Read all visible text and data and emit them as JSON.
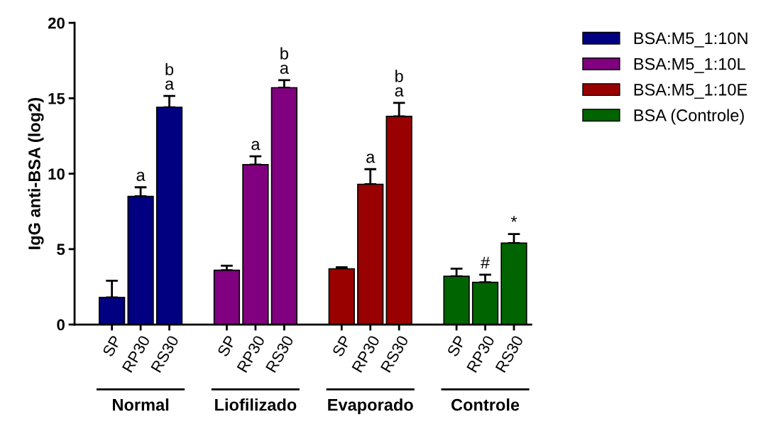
{
  "chart_data": {
    "type": "bar",
    "ylabel": "IgG anti-BSA (log2)",
    "categories": [
      "SP",
      "RP30",
      "RS30",
      null,
      "SP",
      "RP30",
      "RS30",
      null,
      "SP",
      "RP30",
      "RS30",
      null,
      "SP",
      "RP30",
      "RS30"
    ],
    "series": [
      {
        "name": "BSA:M5_1:10N",
        "color": "#000080",
        "values": [
          1.8,
          8.5,
          14.4,
          null,
          null,
          null,
          null,
          null,
          null,
          null,
          null,
          null,
          null,
          null,
          null
        ],
        "errors": [
          1.1,
          0.6,
          0.75,
          null,
          null,
          null,
          null,
          null,
          null,
          null,
          null,
          null,
          null,
          null,
          null
        ],
        "value_labels": [
          null,
          "a",
          "b\na",
          null,
          null,
          null,
          null,
          null,
          null,
          null,
          null,
          null,
          null,
          null,
          null
        ]
      },
      {
        "name": "BSA:M5_1:10L",
        "color": "#800080",
        "values": [
          null,
          null,
          null,
          null,
          3.6,
          10.6,
          15.7,
          null,
          null,
          null,
          null,
          null,
          null,
          null,
          null
        ],
        "errors": [
          null,
          null,
          null,
          null,
          0.3,
          0.55,
          0.5,
          null,
          null,
          null,
          null,
          null,
          null,
          null,
          null
        ],
        "value_labels": [
          null,
          null,
          null,
          null,
          null,
          "a",
          "b\na",
          null,
          null,
          null,
          null,
          null,
          null,
          null,
          null
        ]
      },
      {
        "name": "BSA:M5_1:10E",
        "color": "#990000",
        "values": [
          null,
          null,
          null,
          null,
          null,
          null,
          null,
          null,
          3.7,
          9.3,
          13.8,
          null,
          null,
          null,
          null
        ],
        "errors": [
          null,
          null,
          null,
          null,
          null,
          null,
          null,
          null,
          0.1,
          1.0,
          0.9,
          null,
          null,
          null,
          null
        ],
        "value_labels": [
          null,
          null,
          null,
          null,
          null,
          null,
          null,
          null,
          null,
          "a",
          "b\na",
          null,
          null,
          null,
          null
        ]
      },
      {
        "name": "BSA (Controle)",
        "color": "#006400",
        "values": [
          null,
          null,
          null,
          null,
          null,
          null,
          null,
          null,
          null,
          null,
          null,
          null,
          3.2,
          2.8,
          5.4
        ],
        "errors": [
          null,
          null,
          null,
          null,
          null,
          null,
          null,
          null,
          null,
          null,
          null,
          null,
          0.5,
          0.5,
          0.6
        ],
        "value_labels": [
          null,
          null,
          null,
          null,
          null,
          null,
          null,
          null,
          null,
          null,
          null,
          null,
          null,
          "#",
          "*"
        ]
      }
    ],
    "annotations": [
      "Normal",
      "Liofilizado",
      "Evaporado",
      "Controle"
    ],
    "ylim": [
      0,
      20
    ],
    "yticks": [
      0,
      5,
      10,
      15,
      20
    ],
    "grid": false,
    "legend": "right"
  }
}
